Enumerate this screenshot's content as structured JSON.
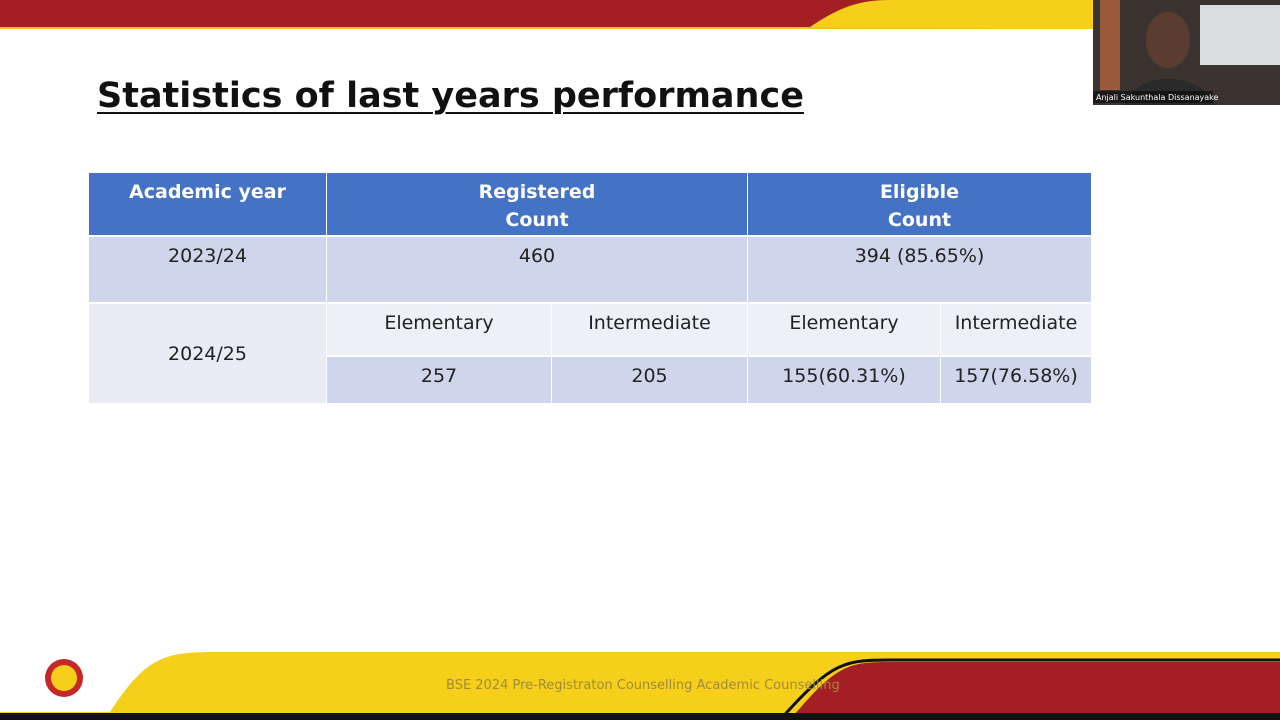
{
  "slide": {
    "title": "Statistics of last years performance",
    "table": {
      "header": [
        "Academic year",
        "Registered\nCount",
        "Eligible\nCount"
      ],
      "rows": [
        [
          "2023/24",
          "460",
          "394 (85.65%)"
        ],
        [
          "2024/25",
          "Elementary",
          "Intermediate",
          "Elementary",
          "Intermediate"
        ],
        [
          "257",
          "205",
          "155(60.31%)",
          "157(76.58%)"
        ]
      ]
    },
    "footer": "BSE 2024 Pre-Registraton Counselling Academic Counselling"
  },
  "participant": {
    "name": "Anjali Sakunthala Dissanayake"
  }
}
